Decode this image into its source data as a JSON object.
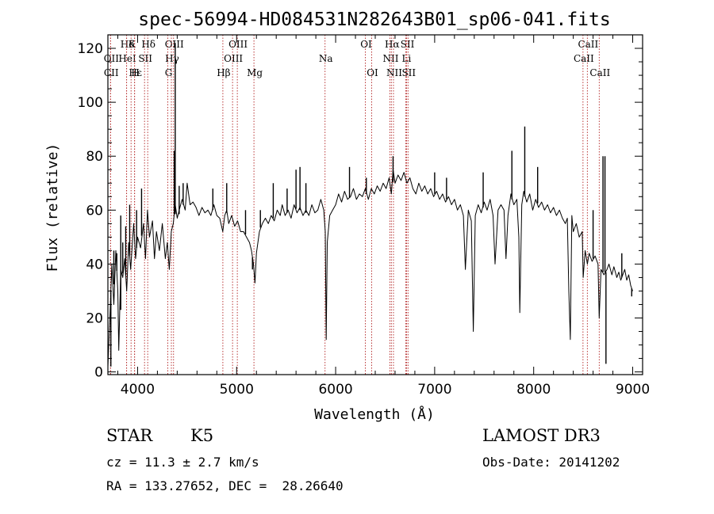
{
  "chart_data": {
    "type": "line",
    "title": "spec-56994-HD084531N282643B01_sp06-041.fits",
    "xlabel": "Wavelength (Å)",
    "ylabel": "Flux (relative)",
    "xlim": [
      3700,
      9100
    ],
    "ylim": [
      -1,
      125
    ],
    "xticks": [
      4000,
      5000,
      6000,
      7000,
      8000,
      9000
    ],
    "yticks": [
      0,
      20,
      40,
      60,
      80,
      100,
      120
    ],
    "series": [
      {
        "name": "flux",
        "points": [
          [
            3700,
            2
          ],
          [
            3720,
            20
          ],
          [
            3740,
            40
          ],
          [
            3760,
            25
          ],
          [
            3780,
            45
          ],
          [
            3800,
            30
          ],
          [
            3810,
            8
          ],
          [
            3830,
            38
          ],
          [
            3850,
            35
          ],
          [
            3870,
            42
          ],
          [
            3890,
            30
          ],
          [
            3910,
            48
          ],
          [
            3930,
            38
          ],
          [
            3960,
            55
          ],
          [
            3980,
            42
          ],
          [
            4000,
            50
          ],
          [
            4030,
            46
          ],
          [
            4060,
            55
          ],
          [
            4080,
            42
          ],
          [
            4100,
            60
          ],
          [
            4120,
            50
          ],
          [
            4150,
            56
          ],
          [
            4170,
            42
          ],
          [
            4190,
            52
          ],
          [
            4220,
            45
          ],
          [
            4250,
            55
          ],
          [
            4280,
            42
          ],
          [
            4300,
            48
          ],
          [
            4320,
            38
          ],
          [
            4340,
            52
          ],
          [
            4360,
            55
          ],
          [
            4380,
            62
          ],
          [
            4400,
            57
          ],
          [
            4420,
            60
          ],
          [
            4450,
            64
          ],
          [
            4480,
            60
          ],
          [
            4500,
            70
          ],
          [
            4530,
            62
          ],
          [
            4560,
            63
          ],
          [
            4590,
            61
          ],
          [
            4620,
            58
          ],
          [
            4650,
            61
          ],
          [
            4680,
            59
          ],
          [
            4710,
            60
          ],
          [
            4740,
            58
          ],
          [
            4770,
            62
          ],
          [
            4800,
            58
          ],
          [
            4830,
            57
          ],
          [
            4860,
            52
          ],
          [
            4880,
            58
          ],
          [
            4900,
            60
          ],
          [
            4920,
            55
          ],
          [
            4950,
            58
          ],
          [
            4980,
            54
          ],
          [
            5010,
            56
          ],
          [
            5040,
            52
          ],
          [
            5070,
            52
          ],
          [
            5100,
            50
          ],
          [
            5130,
            48
          ],
          [
            5150,
            45
          ],
          [
            5170,
            40
          ],
          [
            5185,
            33
          ],
          [
            5200,
            44
          ],
          [
            5230,
            52
          ],
          [
            5260,
            55
          ],
          [
            5290,
            57
          ],
          [
            5320,
            55
          ],
          [
            5350,
            58
          ],
          [
            5380,
            56
          ],
          [
            5410,
            60
          ],
          [
            5440,
            58
          ],
          [
            5460,
            62
          ],
          [
            5490,
            58
          ],
          [
            5520,
            60
          ],
          [
            5550,
            57
          ],
          [
            5580,
            62
          ],
          [
            5610,
            59
          ],
          [
            5640,
            61
          ],
          [
            5670,
            58
          ],
          [
            5700,
            60
          ],
          [
            5730,
            58
          ],
          [
            5760,
            62
          ],
          [
            5790,
            59
          ],
          [
            5820,
            60
          ],
          [
            5850,
            64
          ],
          [
            5880,
            60
          ],
          [
            5895,
            52
          ],
          [
            5905,
            12
          ],
          [
            5915,
            48
          ],
          [
            5940,
            58
          ],
          [
            5970,
            60
          ],
          [
            6000,
            62
          ],
          [
            6030,
            66
          ],
          [
            6060,
            63
          ],
          [
            6090,
            67
          ],
          [
            6120,
            64
          ],
          [
            6150,
            65
          ],
          [
            6180,
            68
          ],
          [
            6210,
            64
          ],
          [
            6240,
            66
          ],
          [
            6270,
            65
          ],
          [
            6300,
            68
          ],
          [
            6330,
            64
          ],
          [
            6360,
            68
          ],
          [
            6390,
            66
          ],
          [
            6420,
            69
          ],
          [
            6450,
            67
          ],
          [
            6480,
            70
          ],
          [
            6510,
            68
          ],
          [
            6540,
            72
          ],
          [
            6563,
            66
          ],
          [
            6580,
            75
          ],
          [
            6600,
            70
          ],
          [
            6630,
            73
          ],
          [
            6660,
            71
          ],
          [
            6690,
            74
          ],
          [
            6720,
            70
          ],
          [
            6750,
            72
          ],
          [
            6780,
            68
          ],
          [
            6810,
            66
          ],
          [
            6840,
            70
          ],
          [
            6870,
            67
          ],
          [
            6900,
            69
          ],
          [
            6930,
            66
          ],
          [
            6960,
            68
          ],
          [
            6990,
            65
          ],
          [
            7020,
            67
          ],
          [
            7050,
            64
          ],
          [
            7080,
            66
          ],
          [
            7110,
            63
          ],
          [
            7140,
            65
          ],
          [
            7170,
            62
          ],
          [
            7200,
            64
          ],
          [
            7230,
            60
          ],
          [
            7260,
            62
          ],
          [
            7290,
            58
          ],
          [
            7310,
            38
          ],
          [
            7340,
            60
          ],
          [
            7370,
            56
          ],
          [
            7390,
            15
          ],
          [
            7410,
            58
          ],
          [
            7440,
            62
          ],
          [
            7470,
            59
          ],
          [
            7500,
            63
          ],
          [
            7530,
            60
          ],
          [
            7560,
            64
          ],
          [
            7590,
            58
          ],
          [
            7610,
            40
          ],
          [
            7640,
            60
          ],
          [
            7670,
            62
          ],
          [
            7700,
            60
          ],
          [
            7720,
            42
          ],
          [
            7740,
            58
          ],
          [
            7770,
            66
          ],
          [
            7800,
            62
          ],
          [
            7830,
            64
          ],
          [
            7850,
            50
          ],
          [
            7860,
            22
          ],
          [
            7880,
            62
          ],
          [
            7900,
            67
          ],
          [
            7930,
            63
          ],
          [
            7960,
            66
          ],
          [
            7990,
            60
          ],
          [
            8020,
            64
          ],
          [
            8050,
            61
          ],
          [
            8080,
            63
          ],
          [
            8110,
            60
          ],
          [
            8140,
            62
          ],
          [
            8170,
            59
          ],
          [
            8200,
            61
          ],
          [
            8230,
            58
          ],
          [
            8260,
            60
          ],
          [
            8290,
            57
          ],
          [
            8320,
            55
          ],
          [
            8340,
            57
          ],
          [
            8355,
            30
          ],
          [
            8370,
            12
          ],
          [
            8385,
            58
          ],
          [
            8400,
            52
          ],
          [
            8430,
            55
          ],
          [
            8460,
            50
          ],
          [
            8490,
            52
          ],
          [
            8500,
            35
          ],
          [
            8520,
            45
          ],
          [
            8542,
            40
          ],
          [
            8560,
            44
          ],
          [
            8590,
            41
          ],
          [
            8620,
            43
          ],
          [
            8650,
            40
          ],
          [
            8662,
            20
          ],
          [
            8680,
            38
          ],
          [
            8710,
            36
          ],
          [
            8740,
            38
          ],
          [
            8760,
            40
          ],
          [
            8790,
            36
          ],
          [
            8810,
            39
          ],
          [
            8840,
            35
          ],
          [
            8860,
            37
          ],
          [
            8880,
            34
          ],
          [
            8900,
            36
          ],
          [
            8920,
            38
          ],
          [
            8940,
            34
          ],
          [
            8960,
            36
          ],
          [
            8980,
            32
          ],
          [
            9000,
            30
          ]
        ]
      }
    ],
    "spikes": [
      [
        3730,
        2
      ],
      [
        3760,
        45
      ],
      [
        3790,
        44
      ],
      [
        3830,
        58
      ],
      [
        3850,
        48
      ],
      [
        3880,
        54
      ],
      [
        3920,
        62
      ],
      [
        3990,
        60
      ],
      [
        4040,
        68
      ],
      [
        4370,
        82
      ],
      [
        4380,
        122
      ],
      [
        4420,
        69
      ],
      [
        4460,
        70
      ],
      [
        4760,
        68
      ],
      [
        4900,
        70
      ],
      [
        5090,
        60
      ],
      [
        5160,
        38
      ],
      [
        5240,
        60
      ],
      [
        5370,
        70
      ],
      [
        5510,
        68
      ],
      [
        5600,
        75
      ],
      [
        5640,
        76
      ],
      [
        5700,
        70
      ],
      [
        6140,
        76
      ],
      [
        6310,
        72
      ],
      [
        6580,
        80
      ],
      [
        7000,
        74
      ],
      [
        7120,
        72
      ],
      [
        7490,
        74
      ],
      [
        7780,
        82
      ],
      [
        7910,
        91
      ],
      [
        8040,
        76
      ],
      [
        8600,
        60
      ],
      [
        8700,
        80
      ],
      [
        8720,
        80
      ],
      [
        8730,
        3
      ],
      [
        8890,
        44
      ],
      [
        8990,
        28
      ]
    ],
    "lines": [
      {
        "name": "Hδ",
        "wl": 3889,
        "row": 0
      },
      {
        "name": "OII",
        "wl": 3727,
        "row": 1
      },
      {
        "name": "CII",
        "wl": 3726,
        "row": 2
      },
      {
        "name": "K",
        "wl": 3934,
        "row": 0
      },
      {
        "name": "HeI",
        "wl": 3889,
        "row": 1
      },
      {
        "name": "Hε",
        "wl": 3970,
        "row": 2
      },
      {
        "name": "Hδ",
        "wl": 4102,
        "row": 0
      },
      {
        "name": "SII",
        "wl": 4070,
        "row": 1
      },
      {
        "name": "H",
        "wl": 3969,
        "row": 2
      },
      {
        "name": "OIII",
        "wl": 4363,
        "row": 0
      },
      {
        "name": "Hγ",
        "wl": 4341,
        "row": 1
      },
      {
        "name": "G",
        "wl": 4305,
        "row": 2
      },
      {
        "name": "OIII",
        "wl": 5007,
        "row": 0
      },
      {
        "name": "OIII",
        "wl": 4959,
        "row": 1
      },
      {
        "name": "Hβ",
        "wl": 4861,
        "row": 2
      },
      {
        "name": "Mg",
        "wl": 5175,
        "row": 2
      },
      {
        "name": "Na",
        "wl": 5893,
        "row": 1
      },
      {
        "name": "OI",
        "wl": 6300,
        "row": 0
      },
      {
        "name": "OI",
        "wl": 6364,
        "row": 2
      },
      {
        "name": "Hα",
        "wl": 6563,
        "row": 0
      },
      {
        "name": "NII",
        "wl": 6548,
        "row": 1
      },
      {
        "name": "NII",
        "wl": 6584,
        "row": 2
      },
      {
        "name": "SII",
        "wl": 6717,
        "row": 0
      },
      {
        "name": "Li",
        "wl": 6708,
        "row": 1
      },
      {
        "name": "SII",
        "wl": 6731,
        "row": 2
      },
      {
        "name": "CaII",
        "wl": 8542,
        "row": 0
      },
      {
        "name": "CaII",
        "wl": 8498,
        "row": 1
      },
      {
        "name": "CaII",
        "wl": 8662,
        "row": 2
      }
    ]
  },
  "info": {
    "class": "STAR",
    "subclass": "K5",
    "survey": "LAMOST DR3",
    "cz": "cz = 11.3 ± 2.7 km/s",
    "obs_date": "Obs-Date: 20141202",
    "radec": "RA = 133.27652, DEC =  28.26640"
  }
}
